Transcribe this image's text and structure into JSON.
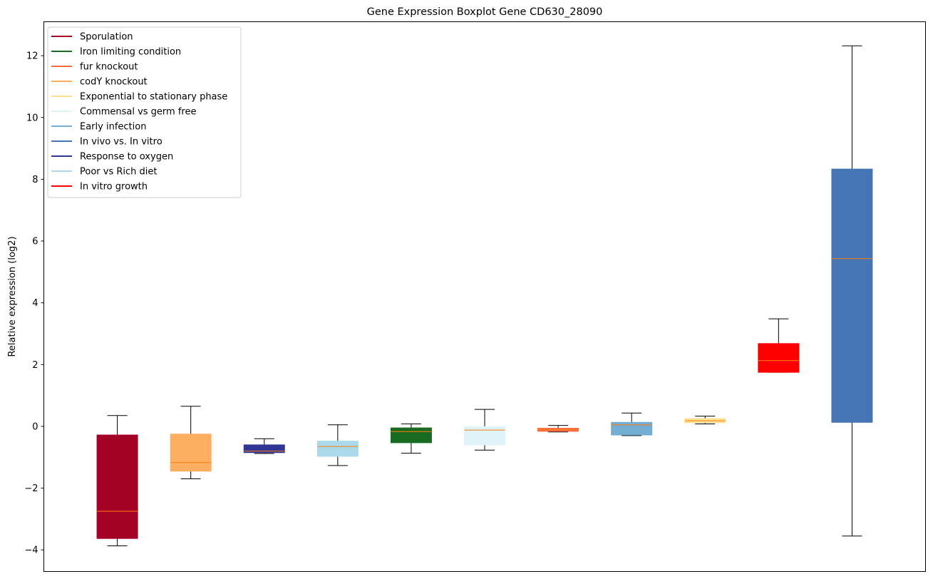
{
  "chart_data": {
    "type": "box",
    "title": "Gene Expression Boxplot Gene CD630_28090",
    "xlabel": "",
    "ylabel": "Relative expression (log2)",
    "ylim": [
      -4.7,
      13.1
    ],
    "yticks": [
      -4,
      -2,
      0,
      2,
      4,
      6,
      8,
      10,
      12
    ],
    "ytick_labels": [
      "−4",
      "−2",
      "0",
      "2",
      "4",
      "6",
      "8",
      "10",
      "12"
    ],
    "grid": false,
    "median_color": "#ff7f0e",
    "legend": {
      "placement": "upper-left",
      "entries": [
        {
          "label": "Sporulation",
          "color": "#a50026"
        },
        {
          "label": "Iron limiting condition",
          "color": "#1a6b22"
        },
        {
          "label": "fur knockout",
          "color": "#f46d43"
        },
        {
          "label": "codY knockout",
          "color": "#fdae61"
        },
        {
          "label": "Exponential to stationary phase",
          "color": "#fee090"
        },
        {
          "label": "Commensal vs germ free",
          "color": "#e0f3f8"
        },
        {
          "label": "Early infection",
          "color": "#74add1"
        },
        {
          "label": "In vivo vs. In vitro",
          "color": "#4575b4"
        },
        {
          "label": "Response to oxygen",
          "color": "#313695"
        },
        {
          "label": "Poor vs Rich diet",
          "color": "#abd9e9"
        },
        {
          "label": "In vitro growth",
          "color": "#ff0000"
        }
      ]
    },
    "boxes": [
      {
        "group": "Sporulation",
        "color": "#a50026",
        "whislo": -3.87,
        "q1": -3.63,
        "med": -2.75,
        "q3": -0.28,
        "whishi": 0.35
      },
      {
        "group": "codY knockout",
        "color": "#fdae61",
        "whislo": -1.7,
        "q1": -1.45,
        "med": -1.17,
        "q3": -0.25,
        "whishi": 0.65
      },
      {
        "group": "Response to oxygen",
        "color": "#313695",
        "whislo": -0.88,
        "q1": -0.85,
        "med": -0.8,
        "q3": -0.6,
        "whishi": -0.4
      },
      {
        "group": "Poor vs Rich diet",
        "color": "#abd9e9",
        "whislo": -1.27,
        "q1": -0.97,
        "med": -0.65,
        "q3": -0.48,
        "whishi": 0.05
      },
      {
        "group": "Iron limiting condition",
        "color": "#1a6b22",
        "whislo": -0.87,
        "q1": -0.53,
        "med": -0.17,
        "q3": -0.05,
        "whishi": 0.08
      },
      {
        "group": "Commensal vs germ free",
        "color": "#e0f3f8",
        "whislo": -0.77,
        "q1": -0.6,
        "med": -0.12,
        "q3": -0.01,
        "whishi": 0.55
      },
      {
        "group": "fur knockout",
        "color": "#f46d43",
        "whislo": -0.18,
        "q1": -0.16,
        "med": -0.1,
        "q3": -0.06,
        "whishi": 0.03
      },
      {
        "group": "Early infection",
        "color": "#74add1",
        "whislo": -0.3,
        "q1": -0.28,
        "med": 0.05,
        "q3": 0.13,
        "whishi": 0.43
      },
      {
        "group": "Exponential to stationary phase",
        "color": "#fee090",
        "whislo": 0.08,
        "q1": 0.12,
        "med": 0.18,
        "q3": 0.25,
        "whishi": 0.33
      },
      {
        "group": "In vitro growth",
        "color": "#ff0000",
        "whislo": 1.75,
        "q1": 1.75,
        "med": 2.13,
        "q3": 2.68,
        "whishi": 3.48
      },
      {
        "group": "In vivo vs. In vitro",
        "color": "#4575b4",
        "whislo": -3.55,
        "q1": 0.13,
        "med": 5.43,
        "q3": 8.33,
        "whishi": 12.32
      }
    ]
  }
}
